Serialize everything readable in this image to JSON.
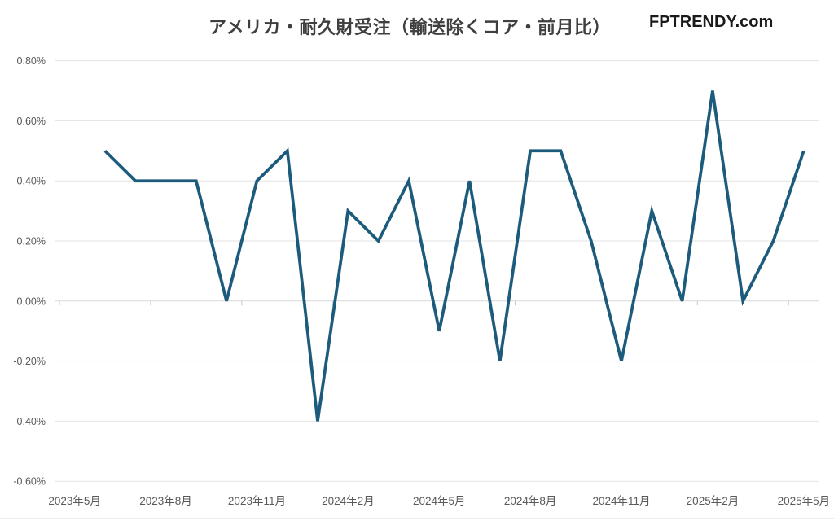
{
  "header": {
    "title": "アメリカ・耐久財受注（輸送除くコア・前月比）",
    "brand": "FPTRENDY.com"
  },
  "chart_data": {
    "type": "line",
    "title": "アメリカ・耐久財受注（輸送除くコア・前月比）",
    "source_label": "FPTRENDY.com",
    "categories": [
      "2023年5月",
      "2023年6月",
      "2023年7月",
      "2023年8月",
      "2023年9月",
      "2023年10月",
      "2023年11月",
      "2023年12月",
      "2024年1月",
      "2024年2月",
      "2024年3月",
      "2024年4月",
      "2024年5月",
      "2024年6月",
      "2024年7月",
      "2024年8月",
      "2024年9月",
      "2024年10月",
      "2024年11月",
      "2024年12月",
      "2025年1月",
      "2025年2月",
      "2025年3月",
      "2025年4月",
      "2025年5月"
    ],
    "series": [
      {
        "name": "前月比",
        "values": [
          null,
          0.5,
          0.4,
          0.4,
          0.4,
          0.0,
          0.4,
          0.5,
          -0.4,
          0.3,
          0.2,
          0.4,
          -0.1,
          0.4,
          -0.2,
          0.5,
          0.5,
          0.2,
          -0.2,
          0.3,
          0.0,
          0.7,
          0.0,
          0.2,
          0.5
        ]
      }
    ],
    "x_axis": {
      "tick_labels": [
        "2023年5月",
        "2023年8月",
        "2023年11月",
        "2024年2月",
        "2024年5月",
        "2024年8月",
        "2024年11月",
        "2025年2月",
        "2025年5月"
      ],
      "label_interval": 3
    },
    "y_axis": {
      "tick_labels": [
        "0.80%",
        "0.60%",
        "0.40%",
        "0.20%",
        "0.00%",
        "-0.20%",
        "-0.40%",
        "-0.60%"
      ],
      "max": 0.8,
      "min": -0.6,
      "step": 0.2,
      "unit": "%"
    },
    "grid": true,
    "legend": false,
    "colors": {
      "line": "#1d5b7c",
      "grid": "#e3e3e3",
      "zero_axis": "#d9d9d9",
      "tick": "#c6c6c6",
      "axis_text": "#595959",
      "title_text": "#3f3f3f",
      "brand_text": "#1a1a1a",
      "background": "#ffffff"
    }
  }
}
